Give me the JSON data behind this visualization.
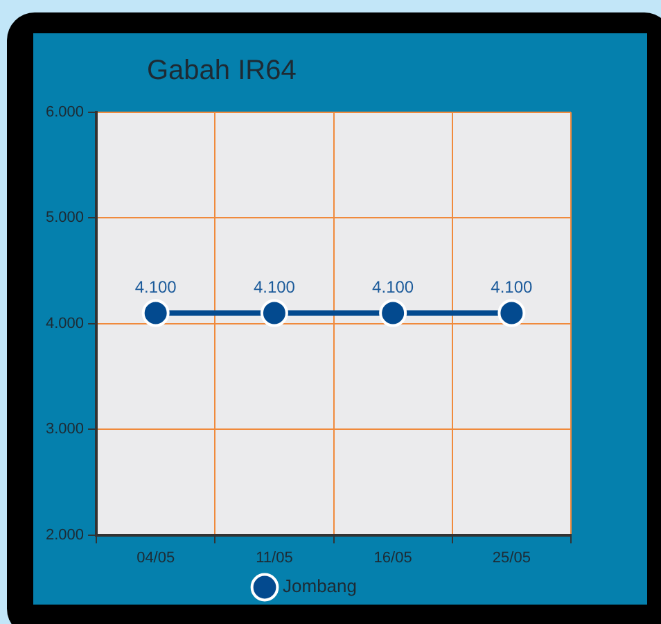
{
  "chart_data": {
    "type": "line",
    "title": "Gabah IR64",
    "categories": [
      "04/05",
      "11/05",
      "16/05",
      "25/05"
    ],
    "series": [
      {
        "name": "Jombang",
        "color": "#034a8f",
        "values": [
          4100,
          4100,
          4100,
          4100
        ],
        "value_labels": [
          "4.100",
          "4.100",
          "4.100",
          "4.100"
        ]
      }
    ],
    "ylim": [
      2000,
      6000
    ],
    "yticks": [
      {
        "value": 2000,
        "label": "2.000"
      },
      {
        "value": 3000,
        "label": "3.000"
      },
      {
        "value": 4000,
        "label": "4.000"
      },
      {
        "value": 5000,
        "label": "5.000"
      },
      {
        "value": 6000,
        "label": "6.000"
      }
    ],
    "grid": true,
    "legend": "bottom",
    "marker": "circle",
    "line_style": "solid"
  }
}
